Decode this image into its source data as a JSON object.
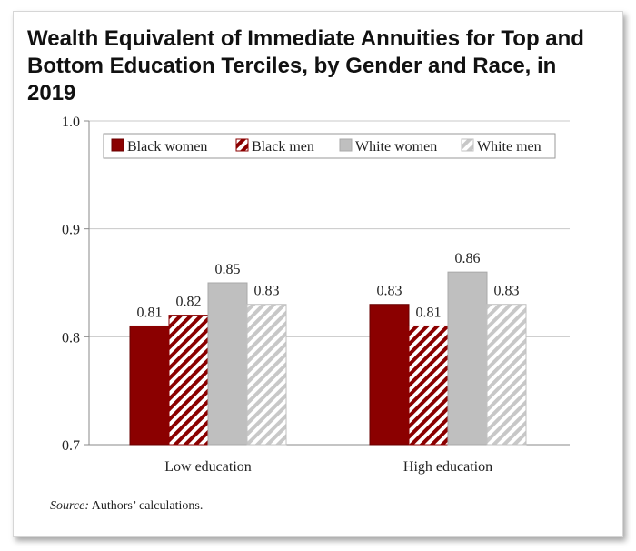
{
  "title_lines": [
    "Wealth Equivalent of Immediate Annuities for Top and",
    "Bottom Education Terciles, by Gender and Race, in 2019"
  ],
  "source": {
    "label": "Source:",
    "text": " Authors’ calculations."
  },
  "chart_data": {
    "type": "bar",
    "title": "Wealth Equivalent of Immediate Annuities for Top and Bottom Education Terciles, by Gender and Race, in 2019",
    "categories": [
      "Low education",
      "High education"
    ],
    "series": [
      {
        "name": "Black women",
        "values": [
          0.81,
          0.83
        ],
        "labels": [
          "0.81",
          "0.83"
        ],
        "color": "#8b0000",
        "pattern": "solid"
      },
      {
        "name": "Black men",
        "values": [
          0.82,
          0.81
        ],
        "labels": [
          "0.82",
          "0.81"
        ],
        "color": "#8b0000",
        "pattern": "stripes"
      },
      {
        "name": "White women",
        "values": [
          0.85,
          0.86
        ],
        "labels": [
          "0.85",
          "0.86"
        ],
        "color": "#bfbfbf",
        "pattern": "solid"
      },
      {
        "name": "White men",
        "values": [
          0.83,
          0.83
        ],
        "labels": [
          "0.83",
          "0.83"
        ],
        "color": "#bfbfbf",
        "pattern": "stripes"
      }
    ],
    "ylim": [
      0.7,
      1.0
    ],
    "yticks": [
      0.7,
      0.8,
      0.9,
      1.0
    ],
    "ytick_labels": [
      "0.7",
      "0.8",
      "0.9",
      "1.0"
    ],
    "grid": true,
    "legend_position": "top-right"
  }
}
